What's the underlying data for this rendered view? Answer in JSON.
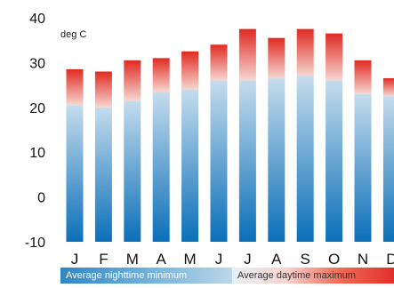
{
  "chart_data": {
    "type": "bar",
    "unit_label": "deg C",
    "categories": [
      "J",
      "F",
      "M",
      "A",
      "M",
      "J",
      "J",
      "A",
      "S",
      "O",
      "N",
      "D"
    ],
    "series": [
      {
        "name": "Average nighttime minimum",
        "values": [
          20.5,
          20,
          21.5,
          23.5,
          24,
          26,
          26,
          26.5,
          27,
          26,
          23,
          22.5
        ]
      },
      {
        "name": "Average daytime maximum",
        "values": [
          28.5,
          28,
          30.5,
          31,
          32.5,
          34,
          37.5,
          35.5,
          37.5,
          36.5,
          30.5,
          26.5
        ]
      }
    ],
    "ylim": [
      -10,
      40
    ],
    "yticks": [
      40,
      30,
      20,
      10,
      0,
      -10
    ],
    "bar_base": -10,
    "colors": {
      "min_bottom": "#0a6fb8",
      "min_top": "#c5dced",
      "max_bottom": "#f6d6d0",
      "max_top": "#e02a22"
    },
    "legend_position": "bottom"
  }
}
